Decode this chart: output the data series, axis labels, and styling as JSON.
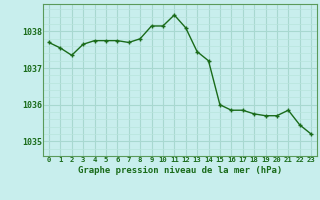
{
  "x": [
    0,
    1,
    2,
    3,
    4,
    5,
    6,
    7,
    8,
    9,
    10,
    11,
    12,
    13,
    14,
    15,
    16,
    17,
    18,
    19,
    20,
    21,
    22,
    23
  ],
  "y": [
    1037.7,
    1037.55,
    1037.35,
    1037.65,
    1037.75,
    1037.75,
    1037.75,
    1037.7,
    1037.8,
    1038.15,
    1038.15,
    1038.45,
    1038.1,
    1037.45,
    1037.2,
    1036.0,
    1035.85,
    1035.85,
    1035.75,
    1035.7,
    1035.7,
    1035.85,
    1035.45,
    1035.2
  ],
  "line_color": "#1a6b1a",
  "marker_color": "#1a6b1a",
  "bg_color": "#c8eeed",
  "grid_color_major": "#a8d8d0",
  "grid_color_minor": "#b8e4dc",
  "xlabel": "Graphe pression niveau de la mer (hPa)",
  "xlabel_color": "#1a6b1a",
  "tick_color": "#1a6b1a",
  "axis_color": "#5a9a5a",
  "ylim": [
    1034.6,
    1038.75
  ],
  "xlim": [
    -0.5,
    23.5
  ],
  "yticks": [
    1035,
    1036,
    1037,
    1038
  ],
  "xticks": [
    0,
    1,
    2,
    3,
    4,
    5,
    6,
    7,
    8,
    9,
    10,
    11,
    12,
    13,
    14,
    15,
    16,
    17,
    18,
    19,
    20,
    21,
    22,
    23
  ]
}
